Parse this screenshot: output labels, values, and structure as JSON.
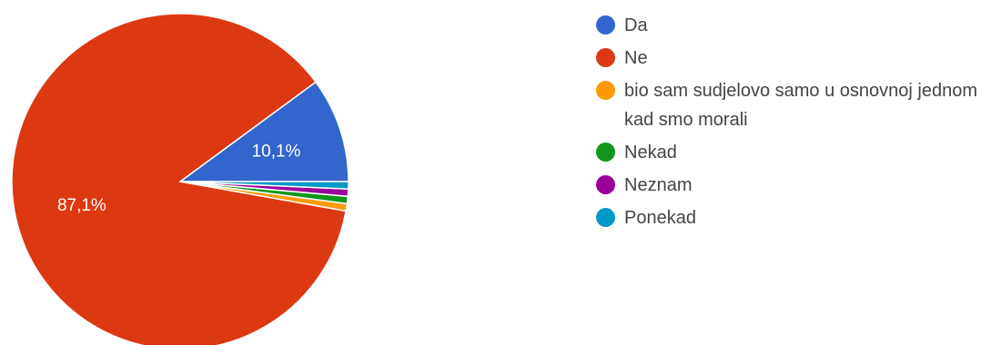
{
  "chart_data": {
    "type": "pie",
    "title": "",
    "legend_position": "right",
    "slices": [
      {
        "label": "Da",
        "value": 10.1,
        "display": "10,1%",
        "color": "#3366cc"
      },
      {
        "label": "Ne",
        "value": 87.1,
        "display": "87,1%",
        "color": "#dc3912"
      },
      {
        "label": "bio sam sudjelovo samo u osnovnoj jednom kad smo morali",
        "value": 0.7,
        "display": "",
        "color": "#ff9900"
      },
      {
        "label": "Nekad",
        "value": 0.7,
        "display": "",
        "color": "#109618"
      },
      {
        "label": "Neznam",
        "value": 0.7,
        "display": "",
        "color": "#990099"
      },
      {
        "label": "Ponekad",
        "value": 0.7,
        "display": "",
        "color": "#0099c6"
      }
    ]
  }
}
